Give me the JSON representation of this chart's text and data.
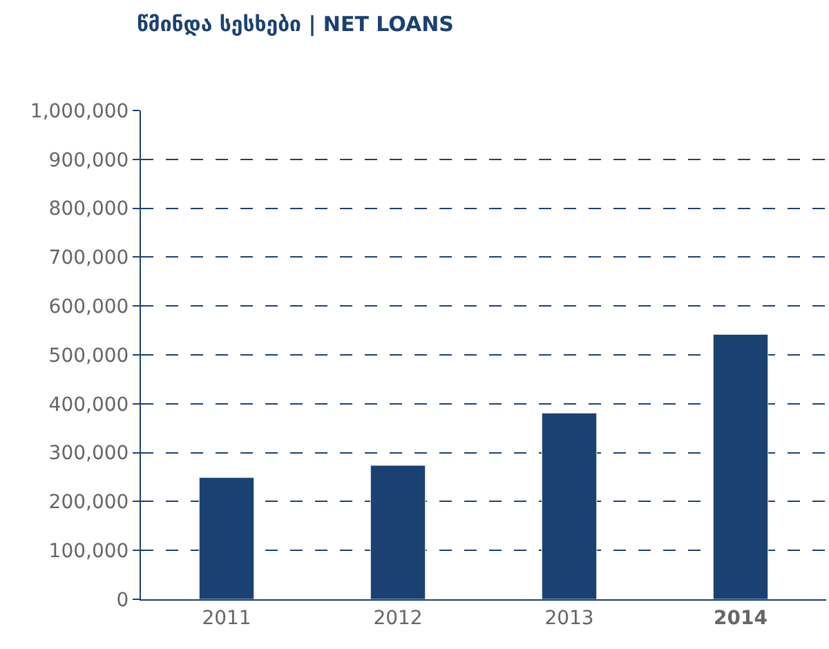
{
  "chart_data": {
    "type": "bar",
    "title": "წმინდა სესხები | NET LOANS",
    "categories": [
      "2011",
      "2012",
      "2013",
      "2014"
    ],
    "values": [
      249000,
      274000,
      381000,
      542000
    ],
    "color": "#1b4173",
    "ylim": [
      0,
      1000000
    ],
    "yticks": [
      {
        "value": 0,
        "label": "0"
      },
      {
        "value": 100000,
        "label": "100,000"
      },
      {
        "value": 200000,
        "label": "200,000"
      },
      {
        "value": 300000,
        "label": "300,000"
      },
      {
        "value": 400000,
        "label": "400,000"
      },
      {
        "value": 500000,
        "label": "500,000"
      },
      {
        "value": 600000,
        "label": "600,000"
      },
      {
        "value": 700000,
        "label": "700,000"
      },
      {
        "value": 800000,
        "label": "800,000"
      },
      {
        "value": 900000,
        "label": "900,000"
      },
      {
        "value": 1000000,
        "label": "1,000,000"
      }
    ],
    "grid": "y",
    "legend": false
  }
}
